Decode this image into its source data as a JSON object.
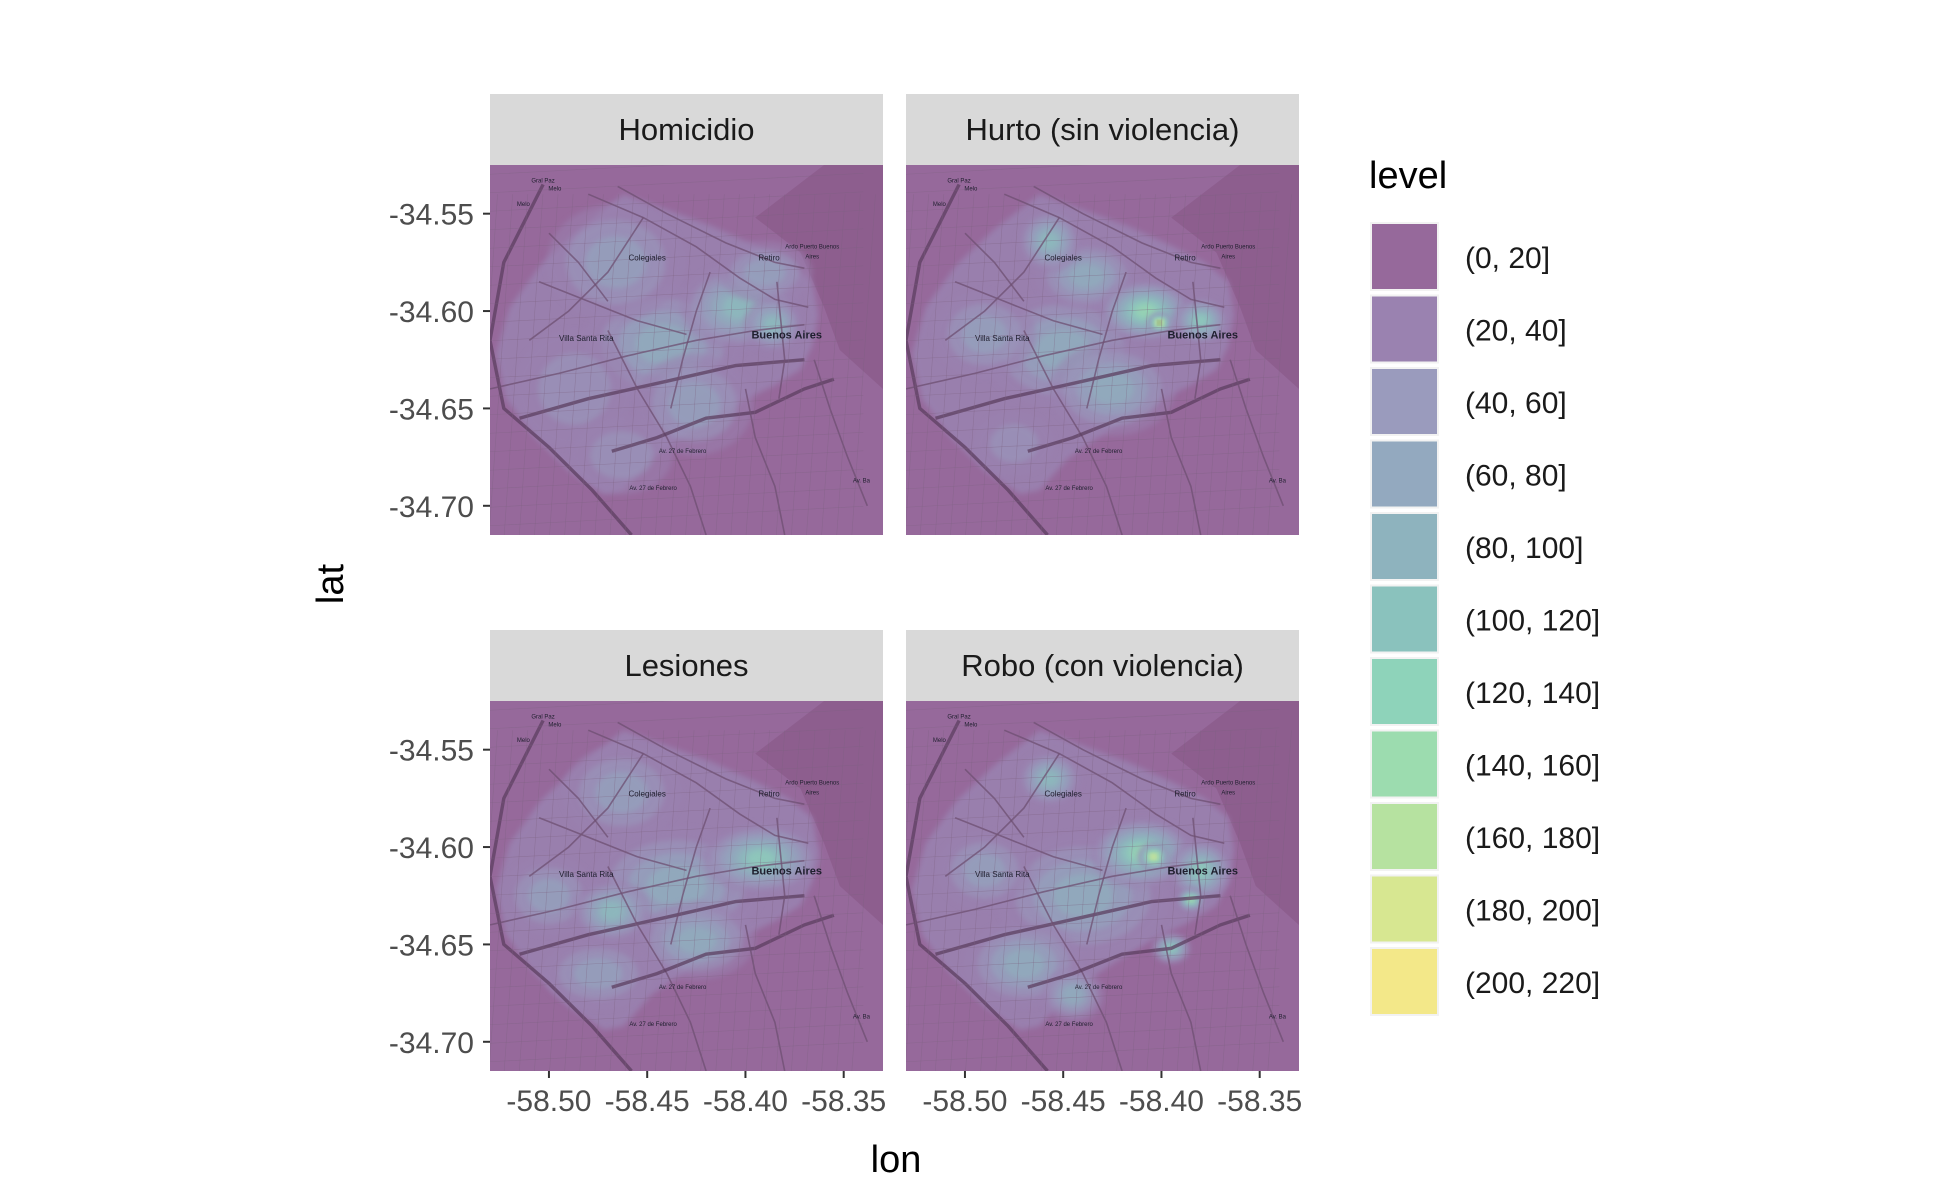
{
  "chart_data": {
    "type": "heatmap",
    "xlabel": "lon",
    "ylabel": "lat",
    "xlim": [
      -58.53,
      -58.33
    ],
    "ylim": [
      -34.715,
      -34.525
    ],
    "x_ticks": [
      -58.5,
      -58.45,
      -58.4,
      -58.35
    ],
    "x_tick_labels": [
      "-58.50",
      "-58.45",
      "-58.40",
      "-58.35"
    ],
    "y_ticks": [
      -34.55,
      -34.6,
      -34.65,
      -34.7
    ],
    "y_tick_labels": [
      "-34.55",
      "-34.60",
      "-34.65",
      "-34.70"
    ],
    "legend": {
      "title": "level",
      "placement": "right",
      "items": [
        {
          "label": "(0, 20]",
          "color": "#96699b"
        },
        {
          "label": "(20, 40]",
          "color": "#9a82b0"
        },
        {
          "label": "(40, 60]",
          "color": "#9a9bbd"
        },
        {
          "label": "(60, 80]",
          "color": "#93a9bf"
        },
        {
          "label": "(80, 100]",
          "color": "#8eb3be"
        },
        {
          "label": "(100, 120]",
          "color": "#8ac2bd"
        },
        {
          "label": "(120, 140]",
          "color": "#8ed3ba"
        },
        {
          "label": "(140, 160]",
          "color": "#9cdcaf"
        },
        {
          "label": "(160, 180]",
          "color": "#b6e2a0"
        },
        {
          "label": "(180, 200]",
          "color": "#d7e791"
        },
        {
          "label": "(200, 220]",
          "color": "#f3e889"
        }
      ]
    },
    "map_labels": [
      {
        "text": "Melo",
        "lon": -58.513,
        "lat": -34.546,
        "size": "tiny"
      },
      {
        "text": "Melo",
        "lon": -58.497,
        "lat": -34.538,
        "size": "tiny"
      },
      {
        "text": "Gral Paz",
        "lon": -58.503,
        "lat": -34.534,
        "size": "tiny"
      },
      {
        "text": "Colegiales",
        "lon": -58.45,
        "lat": -34.574,
        "size": "small"
      },
      {
        "text": "Retiro",
        "lon": -58.388,
        "lat": -34.574,
        "size": "small"
      },
      {
        "text": "Ardo Puerto Buenos",
        "lon": -58.366,
        "lat": -34.568,
        "size": "tiny"
      },
      {
        "text": "Aires",
        "lon": -58.366,
        "lat": -34.573,
        "size": "tiny"
      },
      {
        "text": "Villa Santa Rita",
        "lon": -58.481,
        "lat": -34.6155,
        "size": "small"
      },
      {
        "text": "Buenos Aires",
        "lon": -58.379,
        "lat": -34.614,
        "size": "medium"
      },
      {
        "text": "Av. 27 de Febrero",
        "lon": -58.432,
        "lat": -34.673,
        "size": "tiny"
      },
      {
        "text": "Av. 27 de Febrero",
        "lon": -58.447,
        "lat": -34.692,
        "size": "tiny"
      },
      {
        "text": "Av. Ba",
        "lon": -58.341,
        "lat": -34.688,
        "size": "tiny"
      }
    ],
    "panels": [
      {
        "title": "Homicidio",
        "hotspots": [
          {
            "lon": -58.403,
            "lat": -34.598,
            "sx": 0.03,
            "sy": 0.022,
            "level": 118
          },
          {
            "lon": -58.386,
            "lat": -34.607,
            "sx": 0.015,
            "sy": 0.014,
            "level": 110
          },
          {
            "lon": -58.442,
            "lat": -34.617,
            "sx": 0.04,
            "sy": 0.03,
            "level": 82
          },
          {
            "lon": -58.426,
            "lat": -34.648,
            "sx": 0.03,
            "sy": 0.026,
            "level": 78
          },
          {
            "lon": -58.466,
            "lat": -34.575,
            "sx": 0.035,
            "sy": 0.03,
            "level": 62
          },
          {
            "lon": -58.487,
            "lat": -34.64,
            "sx": 0.03,
            "sy": 0.03,
            "level": 55
          },
          {
            "lon": -58.463,
            "lat": -34.674,
            "sx": 0.026,
            "sy": 0.02,
            "level": 52
          },
          {
            "lon": -58.39,
            "lat": -34.58,
            "sx": 0.024,
            "sy": 0.016,
            "level": 60
          }
        ]
      },
      {
        "title": "Hurto (sin violencia)",
        "hotspots": [
          {
            "lon": -58.401,
            "lat": -34.606,
            "sx": 0.006,
            "sy": 0.005,
            "level": 220
          },
          {
            "lon": -58.408,
            "lat": -34.6,
            "sx": 0.024,
            "sy": 0.016,
            "level": 150
          },
          {
            "lon": -58.38,
            "lat": -34.605,
            "sx": 0.014,
            "sy": 0.012,
            "level": 122
          },
          {
            "lon": -58.457,
            "lat": -34.564,
            "sx": 0.016,
            "sy": 0.016,
            "level": 105
          },
          {
            "lon": -58.45,
            "lat": -34.62,
            "sx": 0.04,
            "sy": 0.03,
            "level": 85
          },
          {
            "lon": -58.425,
            "lat": -34.64,
            "sx": 0.032,
            "sy": 0.024,
            "level": 90
          },
          {
            "lon": -58.49,
            "lat": -34.612,
            "sx": 0.026,
            "sy": 0.022,
            "level": 70
          },
          {
            "lon": -58.475,
            "lat": -34.668,
            "sx": 0.02,
            "sy": 0.016,
            "level": 55
          },
          {
            "lon": -58.438,
            "lat": -34.582,
            "sx": 0.026,
            "sy": 0.018,
            "level": 80
          }
        ]
      },
      {
        "title": "Lesiones",
        "hotspots": [
          {
            "lon": -58.392,
            "lat": -34.606,
            "sx": 0.03,
            "sy": 0.018,
            "level": 125
          },
          {
            "lon": -58.468,
            "lat": -34.633,
            "sx": 0.02,
            "sy": 0.016,
            "level": 115
          },
          {
            "lon": -58.435,
            "lat": -34.62,
            "sx": 0.044,
            "sy": 0.03,
            "level": 92
          },
          {
            "lon": -58.5,
            "lat": -34.625,
            "sx": 0.024,
            "sy": 0.02,
            "level": 78
          },
          {
            "lon": -58.463,
            "lat": -34.572,
            "sx": 0.03,
            "sy": 0.024,
            "level": 65
          },
          {
            "lon": -58.475,
            "lat": -34.665,
            "sx": 0.028,
            "sy": 0.018,
            "level": 62
          },
          {
            "lon": -58.425,
            "lat": -34.648,
            "sx": 0.03,
            "sy": 0.02,
            "level": 80
          }
        ]
      },
      {
        "title": "Robo (con violencia)",
        "hotspots": [
          {
            "lon": -58.404,
            "lat": -34.605,
            "sx": 0.008,
            "sy": 0.007,
            "level": 200
          },
          {
            "lon": -58.385,
            "lat": -34.627,
            "sx": 0.007,
            "sy": 0.006,
            "level": 175
          },
          {
            "lon": -58.41,
            "lat": -34.603,
            "sx": 0.026,
            "sy": 0.018,
            "level": 140
          },
          {
            "lon": -58.38,
            "lat": -34.612,
            "sx": 0.016,
            "sy": 0.016,
            "level": 120
          },
          {
            "lon": -58.457,
            "lat": -34.565,
            "sx": 0.016,
            "sy": 0.014,
            "level": 100
          },
          {
            "lon": -58.395,
            "lat": -34.652,
            "sx": 0.01,
            "sy": 0.008,
            "level": 120
          },
          {
            "lon": -58.44,
            "lat": -34.625,
            "sx": 0.044,
            "sy": 0.032,
            "level": 90
          },
          {
            "lon": -58.47,
            "lat": -34.66,
            "sx": 0.03,
            "sy": 0.022,
            "level": 80
          },
          {
            "lon": -58.445,
            "lat": -34.676,
            "sx": 0.016,
            "sy": 0.014,
            "level": 82
          },
          {
            "lon": -58.49,
            "lat": -34.612,
            "sx": 0.024,
            "sy": 0.02,
            "level": 70
          }
        ]
      }
    ]
  }
}
